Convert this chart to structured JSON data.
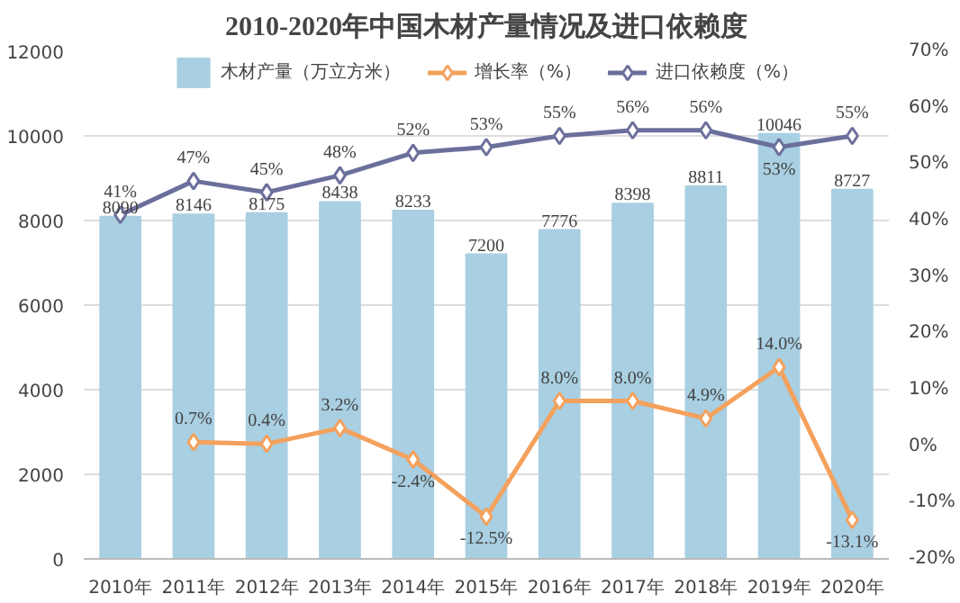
{
  "chart_data": {
    "type": "bar",
    "title": "2010-2020年中国木材产量情况及进口依赖度",
    "categories": [
      "2010年",
      "2011年",
      "2012年",
      "2013年",
      "2014年",
      "2015年",
      "2016年",
      "2017年",
      "2018年",
      "2019年",
      "2020年"
    ],
    "series": [
      {
        "name": "木材产量（万立方米）",
        "color": "#a9cfe2",
        "values": [
          8090,
          8146,
          8175,
          8438,
          8233,
          7200,
          7776,
          8398,
          8811,
          10046,
          8727
        ],
        "value_labels": [
          "8090",
          "8146",
          "8175",
          "8438",
          "8233",
          "7200",
          "7776",
          "8398",
          "8811",
          "10046",
          "8727"
        ]
      },
      {
        "name": "增长率（%）",
        "type": "line",
        "axis": "y2",
        "color": "#f4a15d",
        "marker": "diamond",
        "values": [
          null,
          0.7,
          0.4,
          3.2,
          -2.4,
          -12.5,
          8.0,
          8.0,
          4.9,
          14.0,
          -13.1
        ],
        "value_labels": [
          null,
          "0.7%",
          "0.4%",
          "3.2%",
          "-2.4%",
          "-12.5%",
          "8.0%",
          "8.0%",
          "4.9%",
          "14.0%",
          "-13.1%"
        ]
      },
      {
        "name": "进口依赖度（%）",
        "type": "line",
        "axis": "y2",
        "color": "#6b6f9c",
        "marker": "diamond",
        "values": [
          41,
          47,
          45,
          48,
          52,
          53,
          55,
          56,
          56,
          53,
          55
        ],
        "value_labels": [
          "41%",
          "47%",
          "45%",
          "48%",
          "52%",
          "53%",
          "55%",
          "56%",
          "56%",
          "53%",
          "55%"
        ]
      }
    ],
    "ylim": [
      0,
      12000
    ],
    "yticks": [
      0,
      2000,
      4000,
      6000,
      8000,
      10000,
      12000
    ],
    "y2lim": [
      -20,
      70
    ],
    "y2ticks": [
      {
        "value": -20,
        "label": "-20%"
      },
      {
        "value": -10,
        "label": "-10%"
      },
      {
        "value": 0,
        "label": "0%"
      },
      {
        "value": 10,
        "label": "10%"
      },
      {
        "value": 20,
        "label": "20%"
      },
      {
        "value": 30,
        "label": "30%"
      },
      {
        "value": 40,
        "label": "40%"
      },
      {
        "value": 50,
        "label": "50%"
      },
      {
        "value": 60,
        "label": "60%"
      },
      {
        "value": 70,
        "label": "70%"
      }
    ],
    "grid": "y",
    "legend": "top"
  }
}
